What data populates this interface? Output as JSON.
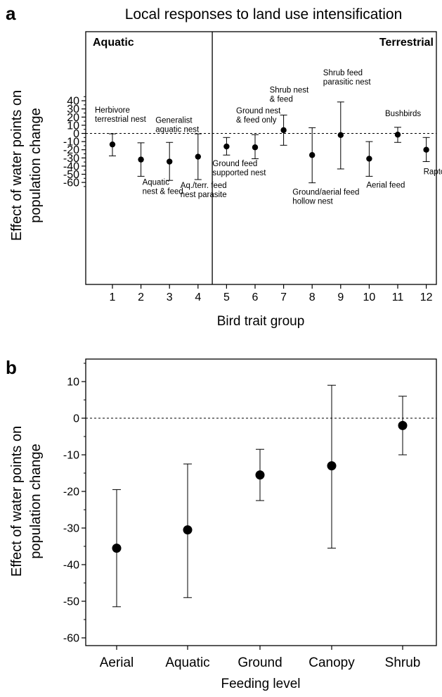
{
  "chart_data": [
    {
      "panel": "a",
      "type": "scatter",
      "title": "Local responses to land use intensification",
      "xlabel": "Bird trait group",
      "ylabel": [
        "Effect of water points on",
        "population change"
      ],
      "xlim": [
        0,
        13
      ],
      "ylim": [
        -70,
        50
      ],
      "xticks": [
        1,
        2,
        3,
        4,
        5,
        6,
        7,
        8,
        9,
        10,
        11,
        12
      ],
      "yticks": [
        40,
        30,
        20,
        10,
        0,
        -10,
        -20,
        -30,
        -40,
        -50,
        -60
      ],
      "reference_line": 0,
      "regions": [
        "Aquatic",
        "Terrestrial"
      ],
      "divider_x": 4.5,
      "points": [
        {
          "x": 1,
          "y": -13.5,
          "lower": -27.5,
          "upper": -0.5,
          "label": [
            "Herbivore",
            "terrestrial nest"
          ]
        },
        {
          "x": 2,
          "y": -32,
          "lower": -52.5,
          "upper": -11.5,
          "label": [
            "Aquatic",
            "nest & feed"
          ]
        },
        {
          "x": 3,
          "y": -34.5,
          "lower": -57.5,
          "upper": -11,
          "label": [
            "Generalist",
            "aquatic nest"
          ]
        },
        {
          "x": 4,
          "y": -28.5,
          "lower": -56.5,
          "upper": -0.5,
          "label": [
            "Aq./terr. feed",
            "nest parasite"
          ]
        },
        {
          "x": 5,
          "y": -16,
          "lower": -26.5,
          "upper": -5,
          "label": [
            "Ground feed",
            "supported nest"
          ]
        },
        {
          "x": 6,
          "y": -17,
          "lower": -31,
          "upper": -1.5,
          "label": [
            "Ground nest",
            "& feed only"
          ]
        },
        {
          "x": 7,
          "y": 4,
          "lower": -14.5,
          "upper": 22.5,
          "label": [
            "Shrub nest",
            "& feed"
          ]
        },
        {
          "x": 8,
          "y": -26.5,
          "lower": -60.5,
          "upper": 7,
          "label": [
            "Ground/aerial feed",
            "hollow nest"
          ]
        },
        {
          "x": 9,
          "y": -2,
          "lower": -43.5,
          "upper": 38.5,
          "label": [
            "Shrub feed",
            "parasitic nest"
          ]
        },
        {
          "x": 10,
          "y": -31,
          "lower": -52.5,
          "upper": -10,
          "label": [
            "Aerial feed"
          ]
        },
        {
          "x": 11,
          "y": -1.5,
          "lower": -11,
          "upper": 7.5,
          "label": [
            "Bushbirds"
          ]
        },
        {
          "x": 12,
          "y": -20,
          "lower": -34.5,
          "upper": -5,
          "label": [
            "Raptors"
          ]
        }
      ]
    },
    {
      "panel": "b",
      "type": "scatter",
      "xlabel": "Feeding level",
      "ylabel": [
        "Effect of water points on",
        "population change"
      ],
      "ylim": [
        -60,
        15
      ],
      "yticks": [
        10,
        0,
        -10,
        -20,
        -30,
        -40,
        -50,
        -60
      ],
      "reference_line": 0,
      "categories": [
        "Aerial",
        "Aquatic",
        "Ground",
        "Canopy",
        "Shrub"
      ],
      "points": [
        {
          "category": "Aerial",
          "y": -35.5,
          "lower": -51.5,
          "upper": -19.5
        },
        {
          "category": "Aquatic",
          "y": -30.5,
          "lower": -49,
          "upper": -12.5
        },
        {
          "category": "Ground",
          "y": -15.5,
          "lower": -22.5,
          "upper": -8.5
        },
        {
          "category": "Canopy",
          "y": -13,
          "lower": -35.5,
          "upper": 9
        },
        {
          "category": "Shrub",
          "y": -2,
          "lower": -10,
          "upper": 6
        }
      ]
    }
  ]
}
